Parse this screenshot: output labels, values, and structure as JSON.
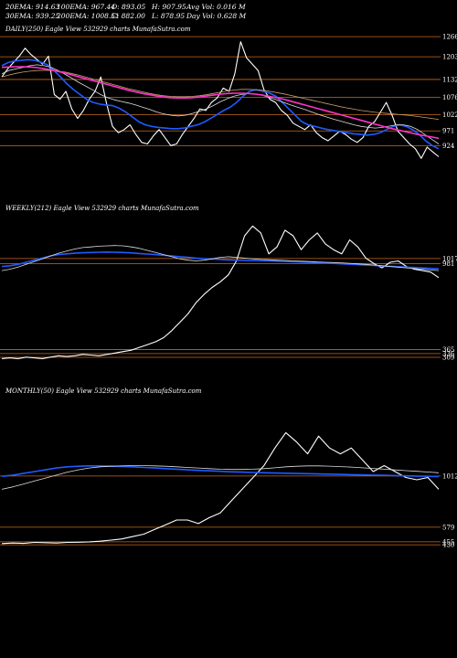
{
  "header": {
    "row1": [
      "20EMA: 914.63",
      "100EMA: 967.44",
      "O: 893.05",
      "H: 907.95",
      "Avg Vol: 0.016  M"
    ],
    "row2": [
      "30EMA: 939.25",
      "200EMA: 1008.51",
      "C: 882.00",
      "L: 878.95",
      "Day Vol: 0.628  M"
    ]
  },
  "colors": {
    "background": "#000000",
    "price": "#ffffff",
    "ema_blue": "#1f5bff",
    "ema_magenta": "#ff33cc",
    "ema_white": "#dcdcdc",
    "ema_tan": "#c8a070",
    "level_line": "#c96a1e"
  },
  "chart_data": [
    {
      "type": "line",
      "title": "DAILY(250) Eagle  View  532929 charts MunafaSutra.com",
      "level_ticks": [
        1266,
        1203,
        1132,
        1076,
        1022,
        971,
        924
      ],
      "ylim": [
        860,
        1295
      ],
      "series": [
        {
          "role": "price",
          "values": [
            1140,
            1165,
            1185,
            1205,
            1230,
            1210,
            1195,
            1180,
            1205,
            1085,
            1070,
            1095,
            1040,
            1010,
            1035,
            1070,
            1095,
            1140,
            1055,
            985,
            965,
            975,
            990,
            960,
            935,
            930,
            955,
            975,
            950,
            925,
            930,
            960,
            985,
            1010,
            1040,
            1035,
            1060,
            1075,
            1105,
            1095,
            1150,
            1250,
            1200,
            1180,
            1160,
            1100,
            1070,
            1060,
            1035,
            1020,
            995,
            985,
            975,
            990,
            965,
            950,
            940,
            955,
            970,
            960,
            945,
            935,
            950,
            985,
            1000,
            1030,
            1060,
            1020,
            970,
            950,
            930,
            915,
            885,
            920,
            905,
            890
          ]
        },
        {
          "role": "ema",
          "values": [
            1175,
            1185,
            1190,
            1192,
            1194,
            1192,
            1186,
            1178,
            1160,
            1140,
            1118,
            1100,
            1085,
            1070,
            1060,
            1055,
            1052,
            1050,
            1042,
            1030,
            1015,
            1000,
            990,
            985,
            982,
            980,
            978,
            978,
            980,
            985,
            990,
            998,
            1010,
            1022,
            1035,
            1045,
            1060,
            1080,
            1095,
            1100,
            1095,
            1090,
            1080,
            1060,
            1040,
            1020,
            1000,
            990,
            985,
            980,
            975,
            972,
            968,
            965,
            962,
            960,
            958,
            960,
            965,
            975,
            985,
            990,
            985,
            975,
            960,
            940,
            925,
            915
          ]
        },
        {
          "role": "ema",
          "values": [
            1150,
            1160,
            1165,
            1170,
            1175,
            1178,
            1175,
            1170,
            1160,
            1148,
            1135,
            1122,
            1110,
            1098,
            1085,
            1075,
            1068,
            1063,
            1058,
            1052,
            1045,
            1038,
            1030,
            1024,
            1020,
            1018,
            1020,
            1025,
            1032,
            1040,
            1050,
            1062,
            1072,
            1080,
            1085,
            1088,
            1086,
            1082,
            1075,
            1068,
            1060,
            1052,
            1045,
            1038,
            1030,
            1022,
            1015,
            1008,
            1002,
            996,
            990,
            985,
            982,
            980,
            982,
            986,
            990,
            990,
            985,
            975,
            960,
            945,
            930
          ]
        },
        {
          "role": "ema",
          "values": [
            1140,
            1146,
            1151,
            1155,
            1158,
            1160,
            1161,
            1160,
            1158,
            1155,
            1150,
            1145,
            1139,
            1133,
            1127,
            1121,
            1115,
            1109,
            1103,
            1098,
            1093,
            1088,
            1084,
            1081,
            1079,
            1078,
            1078,
            1079,
            1081,
            1084,
            1088,
            1092,
            1096,
            1099,
            1101,
            1101,
            1100,
            1098,
            1095,
            1091,
            1087,
            1082,
            1077,
            1072,
            1067,
            1062,
            1057,
            1052,
            1047,
            1043,
            1039,
            1035,
            1032,
            1029,
            1027,
            1025,
            1023,
            1021,
            1019,
            1016,
            1013,
            1010,
            1007
          ]
        },
        {
          "role": "ema",
          "values": [
            1170,
            1171,
            1172,
            1172,
            1171,
            1169,
            1166,
            1162,
            1157,
            1152,
            1146,
            1140,
            1134,
            1128,
            1122,
            1116,
            1110,
            1104,
            1098,
            1093,
            1088,
            1084,
            1080,
            1077,
            1075,
            1074,
            1074,
            1075,
            1077,
            1080,
            1083,
            1086,
            1088,
            1089,
            1089,
            1088,
            1086,
            1083,
            1079,
            1075,
            1070,
            1064,
            1058,
            1052,
            1046,
            1040,
            1034,
            1028,
            1022,
            1016,
            1010,
            1004,
            998,
            992,
            986,
            980,
            975,
            970,
            965,
            960,
            956,
            952,
            948
          ]
        }
      ]
    },
    {
      "type": "line",
      "title": "WEEKLY(212) Eagle  View  532929 charts MunafaSutra.com",
      "level_ticks": [
        1017,
        981,
        365,
        336,
        309
      ],
      "ylim": [
        250,
        1350
      ],
      "series": [
        {
          "role": "price",
          "values": [
            300,
            305,
            300,
            310,
            305,
            300,
            310,
            320,
            315,
            320,
            330,
            325,
            320,
            330,
            340,
            350,
            360,
            380,
            400,
            420,
            450,
            500,
            560,
            620,
            700,
            760,
            810,
            850,
            900,
            1000,
            1180,
            1250,
            1200,
            1050,
            1100,
            1220,
            1180,
            1080,
            1150,
            1200,
            1120,
            1080,
            1050,
            1150,
            1100,
            1020,
            980,
            950,
            990,
            1000,
            960,
            940,
            930,
            920,
            880
          ]
        },
        {
          "role": "ema",
          "values": [
            960,
            965,
            975,
            990,
            1005,
            1020,
            1035,
            1045,
            1050,
            1055,
            1058,
            1060,
            1062,
            1063,
            1062,
            1060,
            1057,
            1053,
            1049,
            1045,
            1040,
            1035,
            1030,
            1025,
            1020,
            1016,
            1013,
            1010,
            1007,
            1005,
            1003,
            1002,
            1001,
            1000,
            998,
            996,
            994,
            992,
            990,
            988,
            985,
            982,
            979,
            976,
            973,
            970,
            967,
            964,
            961,
            958,
            955,
            952,
            949,
            946,
            943
          ]
        },
        {
          "role": "ema",
          "values": [
            930,
            940,
            955,
            975,
            995,
            1015,
            1035,
            1055,
            1070,
            1085,
            1095,
            1100,
            1105,
            1108,
            1110,
            1108,
            1100,
            1090,
            1075,
            1060,
            1045,
            1030,
            1015,
            1005,
            1000,
            1005,
            1015,
            1025,
            1030,
            1025,
            1020,
            1015,
            1010,
            1008,
            1005,
            1003,
            1000,
            998,
            995,
            992,
            990,
            988,
            985,
            982,
            978,
            975,
            970,
            965,
            960,
            955,
            950,
            945,
            940,
            935,
            930
          ]
        }
      ]
    },
    {
      "type": "line",
      "title": "MONTHLY(50) Eagle  View  532929 charts MunafaSutra.com",
      "level_ticks": [
        1012,
        579,
        455,
        430
      ],
      "ylim": [
        400,
        1700
      ],
      "series": [
        {
          "role": "price",
          "values": [
            440,
            445,
            442,
            450,
            448,
            445,
            450,
            452,
            455,
            460,
            470,
            480,
            500,
            520,
            560,
            600,
            640,
            640,
            610,
            660,
            700,
            800,
            900,
            1000,
            1100,
            1250,
            1380,
            1300,
            1200,
            1350,
            1250,
            1200,
            1250,
            1150,
            1050,
            1100,
            1050,
            1000,
            980,
            1000,
            900
          ]
        },
        {
          "role": "ema",
          "values": [
            1010,
            1020,
            1035,
            1050,
            1065,
            1080,
            1090,
            1095,
            1098,
            1098,
            1096,
            1093,
            1090,
            1085,
            1080,
            1075,
            1070,
            1065,
            1060,
            1056,
            1052,
            1048,
            1045,
            1042,
            1040,
            1038,
            1036,
            1034,
            1032,
            1030,
            1028,
            1026,
            1024,
            1022,
            1020,
            1018,
            1016,
            1014,
            1012,
            1010,
            1008
          ]
        },
        {
          "role": "ema",
          "values": [
            900,
            920,
            945,
            970,
            995,
            1020,
            1045,
            1065,
            1080,
            1090,
            1095,
            1098,
            1100,
            1100,
            1098,
            1095,
            1090,
            1085,
            1080,
            1075,
            1070,
            1068,
            1068,
            1070,
            1075,
            1082,
            1090,
            1095,
            1098,
            1098,
            1096,
            1092,
            1088,
            1082,
            1076,
            1070,
            1064,
            1058,
            1052,
            1046,
            1040
          ]
        }
      ]
    }
  ]
}
